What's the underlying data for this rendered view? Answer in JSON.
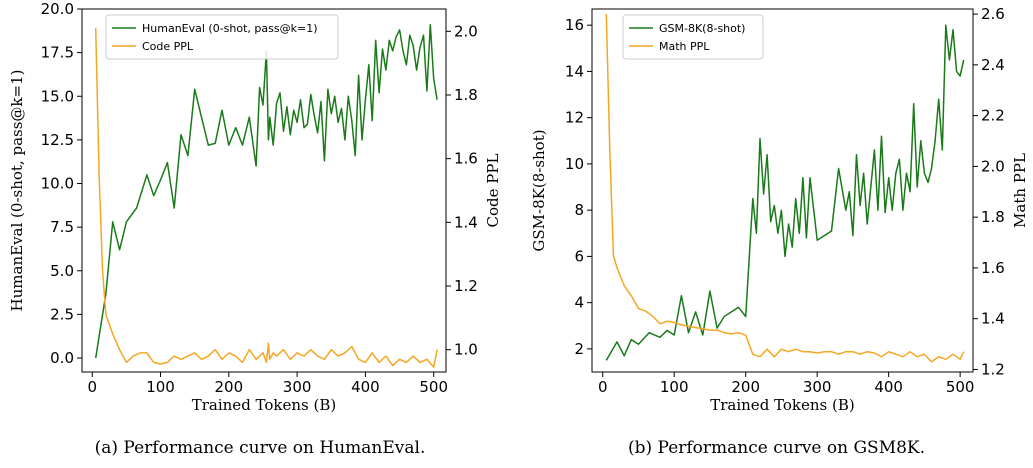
{
  "chart_data": [
    {
      "type": "line",
      "caption": "(a) Performance curve on HumanEval.",
      "xlabel": "Trained Tokens (B)",
      "ylabel_left": "HumanEval (0-shot, pass@k=1)",
      "ylabel_right": "Code PPL",
      "xlim": [
        -15,
        518
      ],
      "ylim_left": [
        -0.8,
        20.0
      ],
      "ylim_right": [
        0.93,
        2.07
      ],
      "xticks": [
        0,
        100,
        200,
        300,
        400,
        500
      ],
      "yticks_left": [
        0.0,
        2.5,
        5.0,
        7.5,
        10.0,
        12.5,
        15.0,
        17.5,
        20.0
      ],
      "yticks_left_labels": [
        "0.0",
        "2.5",
        "5.0",
        "7.5",
        "10.0",
        "12.5",
        "15.0",
        "17.5",
        "20.0"
      ],
      "yticks_right": [
        1.0,
        1.2,
        1.4,
        1.6,
        1.8,
        2.0
      ],
      "yticks_right_labels": [
        "1.0",
        "1.2",
        "1.4",
        "1.6",
        "1.8",
        "2.0"
      ],
      "legend_position": "top-right",
      "colors": {
        "left": "#1a7a1a",
        "right": "#f5a623"
      },
      "series": [
        {
          "name": "HumanEval (0-shot, pass@k=1)",
          "axis": "left",
          "x": [
            5,
            20,
            30,
            40,
            50,
            65,
            80,
            90,
            100,
            110,
            120,
            130,
            140,
            150,
            160,
            170,
            180,
            190,
            200,
            210,
            220,
            230,
            240,
            245,
            250,
            255,
            258,
            260,
            265,
            270,
            275,
            280,
            285,
            290,
            295,
            300,
            305,
            310,
            315,
            320,
            325,
            330,
            335,
            340,
            345,
            350,
            355,
            360,
            365,
            370,
            375,
            380,
            385,
            390,
            395,
            400,
            405,
            410,
            415,
            420,
            425,
            430,
            435,
            440,
            445,
            450,
            455,
            460,
            465,
            470,
            475,
            480,
            485,
            490,
            495,
            500,
            505
          ],
          "values": [
            0.0,
            3.7,
            7.8,
            6.2,
            7.8,
            8.6,
            10.5,
            9.3,
            10.2,
            11.2,
            8.6,
            12.8,
            11.6,
            15.4,
            13.8,
            12.2,
            12.3,
            14.2,
            12.2,
            13.2,
            12.2,
            13.8,
            11.0,
            15.5,
            14.5,
            17.6,
            12.5,
            13.8,
            12.2,
            14.6,
            15.2,
            13.0,
            14.4,
            12.8,
            14.2,
            13.5,
            14.8,
            13.2,
            13.4,
            15.1,
            13.9,
            12.9,
            14.7,
            11.3,
            15.4,
            14.0,
            15.0,
            13.5,
            14.3,
            12.5,
            15.0,
            13.6,
            11.6,
            16.2,
            12.5,
            14.8,
            16.8,
            13.6,
            18.2,
            15.2,
            17.7,
            16.5,
            18.2,
            17.6,
            18.4,
            18.8,
            17.6,
            16.8,
            18.5,
            17.9,
            16.5,
            17.8,
            18.5,
            15.3,
            19.1,
            16.0,
            14.8
          ]
        },
        {
          "name": "Code PPL",
          "axis": "right",
          "x": [
            5,
            10,
            15,
            20,
            30,
            40,
            50,
            60,
            70,
            80,
            90,
            100,
            110,
            120,
            130,
            140,
            150,
            160,
            170,
            180,
            190,
            200,
            210,
            220,
            230,
            240,
            250,
            255,
            258,
            260,
            265,
            270,
            280,
            290,
            300,
            310,
            320,
            330,
            340,
            350,
            360,
            370,
            380,
            390,
            400,
            410,
            420,
            430,
            440,
            450,
            460,
            470,
            480,
            490,
            500,
            505
          ],
          "values": [
            2.01,
            1.55,
            1.25,
            1.11,
            1.05,
            1.0,
            0.96,
            0.98,
            0.99,
            0.99,
            0.96,
            0.955,
            0.96,
            0.98,
            0.97,
            0.98,
            0.99,
            0.97,
            0.98,
            1.0,
            0.97,
            0.99,
            0.98,
            0.96,
            1.0,
            0.97,
            0.99,
            0.96,
            1.02,
            0.97,
            0.99,
            0.98,
            1.0,
            0.97,
            0.99,
            0.98,
            1.0,
            0.98,
            0.97,
            1.0,
            0.98,
            0.99,
            1.01,
            0.97,
            0.96,
            0.99,
            0.96,
            0.98,
            0.95,
            0.97,
            0.96,
            0.98,
            0.96,
            0.97,
            0.945,
            1.0
          ]
        }
      ]
    },
    {
      "type": "line",
      "caption": "(b) Performance curve on GSM8K.",
      "xlabel": "Trained Tokens (B)",
      "ylabel_left": "GSM-8K(8-shot)",
      "ylabel_right": "Math PPL",
      "xlim": [
        -15,
        518
      ],
      "ylim_left": [
        1.0,
        16.7
      ],
      "ylim_right": [
        1.19,
        2.62
      ],
      "xticks": [
        0,
        100,
        200,
        300,
        400,
        500
      ],
      "yticks_left": [
        2,
        4,
        6,
        8,
        10,
        12,
        14,
        16
      ],
      "yticks_left_labels": [
        "2",
        "4",
        "6",
        "8",
        "10",
        "12",
        "14",
        "16"
      ],
      "yticks_right": [
        1.2,
        1.4,
        1.6,
        1.8,
        2.0,
        2.2,
        2.4,
        2.6
      ],
      "yticks_right_labels": [
        "1.2",
        "1.4",
        "1.6",
        "1.8",
        "2.0",
        "2.2",
        "2.4",
        "2.6"
      ],
      "legend_position": "top-left",
      "colors": {
        "left": "#1a7a1a",
        "right": "#f5a623"
      },
      "series": [
        {
          "name": "GSM-8K(8-shot)",
          "axis": "left",
          "x": [
            5,
            20,
            30,
            40,
            50,
            65,
            80,
            90,
            100,
            110,
            120,
            130,
            140,
            150,
            160,
            170,
            180,
            190,
            200,
            210,
            215,
            220,
            225,
            230,
            235,
            240,
            245,
            250,
            255,
            260,
            265,
            270,
            275,
            280,
            285,
            290,
            300,
            320,
            330,
            340,
            345,
            350,
            355,
            360,
            365,
            370,
            375,
            380,
            385,
            390,
            395,
            400,
            405,
            410,
            415,
            420,
            425,
            430,
            435,
            440,
            445,
            450,
            455,
            460,
            465,
            470,
            475,
            480,
            485,
            490,
            495,
            500,
            505
          ],
          "values": [
            1.5,
            2.3,
            1.7,
            2.4,
            2.2,
            2.7,
            2.5,
            2.8,
            2.6,
            4.3,
            2.7,
            3.6,
            2.6,
            4.5,
            2.9,
            3.4,
            3.6,
            3.8,
            3.4,
            8.5,
            7.0,
            11.1,
            8.7,
            10.4,
            7.5,
            8.2,
            7.0,
            8.0,
            6.0,
            7.4,
            6.4,
            8.5,
            7.0,
            9.4,
            6.8,
            9.4,
            6.7,
            7.1,
            9.8,
            8.0,
            8.8,
            6.9,
            10.4,
            8.2,
            9.6,
            7.4,
            9.0,
            10.6,
            8.0,
            11.2,
            7.9,
            9.4,
            8.0,
            9.6,
            10.2,
            8.0,
            9.6,
            8.8,
            12.6,
            9.0,
            11.0,
            9.6,
            9.2,
            9.8,
            11.0,
            12.8,
            10.6,
            16.0,
            14.5,
            15.8,
            14.0,
            13.8,
            14.5
          ]
        },
        {
          "name": "Math PPL",
          "axis": "right",
          "x": [
            5,
            10,
            15,
            20,
            30,
            40,
            50,
            60,
            70,
            80,
            90,
            100,
            110,
            120,
            130,
            140,
            150,
            160,
            170,
            180,
            190,
            200,
            210,
            220,
            230,
            240,
            250,
            260,
            270,
            280,
            290,
            300,
            310,
            320,
            330,
            340,
            350,
            360,
            370,
            380,
            390,
            400,
            410,
            420,
            430,
            440,
            450,
            460,
            470,
            480,
            490,
            500,
            505
          ],
          "values": [
            2.6,
            2.05,
            1.65,
            1.6,
            1.53,
            1.49,
            1.44,
            1.43,
            1.41,
            1.38,
            1.39,
            1.385,
            1.375,
            1.37,
            1.365,
            1.36,
            1.355,
            1.355,
            1.345,
            1.34,
            1.345,
            1.335,
            1.26,
            1.25,
            1.28,
            1.25,
            1.28,
            1.27,
            1.28,
            1.27,
            1.27,
            1.265,
            1.27,
            1.27,
            1.26,
            1.27,
            1.27,
            1.26,
            1.27,
            1.265,
            1.25,
            1.27,
            1.26,
            1.25,
            1.27,
            1.25,
            1.26,
            1.23,
            1.25,
            1.24,
            1.26,
            1.24,
            1.27
          ]
        }
      ]
    }
  ]
}
